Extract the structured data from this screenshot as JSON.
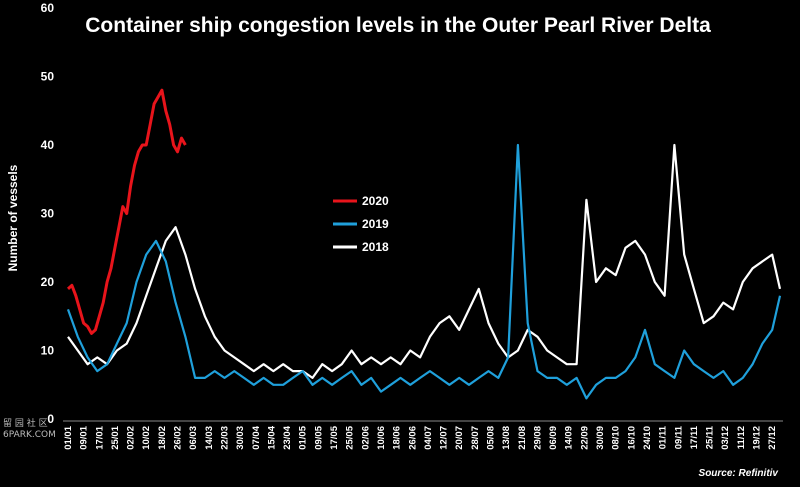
{
  "chart_data": {
    "type": "line",
    "title": "Container ship congestion levels in the Outer Pearl River Delta",
    "ylabel": "Number of vessels",
    "xlabel": "",
    "ylim": [
      0,
      60
    ],
    "yticks": [
      0,
      10,
      20,
      30,
      40,
      50,
      60
    ],
    "x_tick_labels": [
      "01/01",
      "09/01",
      "17/01",
      "25/01",
      "02/02",
      "10/02",
      "18/02",
      "26/02",
      "06/03",
      "14/03",
      "22/03",
      "30/03",
      "07/04",
      "15/04",
      "23/04",
      "01/05",
      "09/05",
      "17/05",
      "25/05",
      "02/06",
      "10/06",
      "18/06",
      "26/06",
      "04/07",
      "12/07",
      "20/07",
      "28/07",
      "05/08",
      "13/08",
      "21/08",
      "29/08",
      "06/09",
      "14/09",
      "22/09",
      "30/09",
      "08/10",
      "16/10",
      "24/10",
      "01/11",
      "09/11",
      "17/11",
      "25/11",
      "03/12",
      "11/12",
      "19/12",
      "27/12"
    ],
    "legend_position": "center-left",
    "grid": false,
    "series": [
      {
        "name": "2020",
        "color": "#e8141b",
        "x_day": [
          1,
          3,
          5,
          7,
          9,
          11,
          13,
          15,
          17,
          19,
          21,
          23,
          25,
          27,
          29,
          31,
          33,
          35,
          37,
          39,
          41,
          43,
          45,
          47,
          49,
          51,
          53,
          55,
          57,
          59,
          61
        ],
        "values": [
          19,
          19.5,
          18,
          16,
          14,
          13.5,
          12.5,
          13,
          15,
          17,
          20,
          22,
          25,
          28,
          31,
          30,
          34,
          37,
          39,
          40,
          40,
          43,
          46,
          47,
          48,
          45,
          43,
          40,
          39,
          41,
          40
        ]
      },
      {
        "name": "2019",
        "color": "#1fa0db",
        "x_day": [
          1,
          6,
          11,
          16,
          21,
          26,
          31,
          36,
          41,
          46,
          51,
          56,
          61,
          66,
          71,
          76,
          81,
          86,
          91,
          96,
          101,
          106,
          111,
          116,
          121,
          126,
          131,
          136,
          141,
          146,
          151,
          156,
          161,
          166,
          171,
          176,
          181,
          186,
          191,
          196,
          201,
          206,
          211,
          216,
          221,
          226,
          231,
          236,
          241,
          246,
          251,
          256,
          261,
          266,
          271,
          276,
          281,
          286,
          291,
          296,
          301,
          306,
          311,
          316,
          321,
          326,
          331,
          336,
          341,
          346,
          351,
          356,
          361,
          365
        ],
        "values": [
          16,
          12,
          9,
          7,
          8,
          11,
          14,
          20,
          24,
          26,
          23,
          17,
          12,
          6,
          6,
          7,
          6,
          7,
          6,
          5,
          6,
          5,
          5,
          6,
          7,
          5,
          6,
          5,
          6,
          7,
          5,
          6,
          4,
          5,
          6,
          5,
          6,
          7,
          6,
          5,
          6,
          5,
          6,
          7,
          6,
          9,
          40,
          14,
          7,
          6,
          6,
          5,
          6,
          3,
          5,
          6,
          6,
          7,
          9,
          13,
          8,
          7,
          6,
          10,
          8,
          7,
          6,
          7,
          5,
          6,
          8,
          11,
          13,
          18
        ]
      },
      {
        "name": "2018",
        "color": "#ffffff",
        "x_day": [
          1,
          6,
          11,
          16,
          21,
          26,
          31,
          36,
          41,
          46,
          51,
          56,
          61,
          66,
          71,
          76,
          81,
          86,
          91,
          96,
          101,
          106,
          111,
          116,
          121,
          126,
          131,
          136,
          141,
          146,
          151,
          156,
          161,
          166,
          171,
          176,
          181,
          186,
          191,
          196,
          201,
          206,
          211,
          216,
          221,
          226,
          231,
          236,
          241,
          246,
          251,
          256,
          261,
          266,
          271,
          276,
          281,
          286,
          291,
          296,
          301,
          306,
          311,
          316,
          321,
          326,
          331,
          336,
          341,
          346,
          351,
          356,
          361,
          365
        ],
        "values": [
          12,
          10,
          8,
          9,
          8,
          10,
          11,
          14,
          18,
          22,
          26,
          28,
          24,
          19,
          15,
          12,
          10,
          9,
          8,
          7,
          8,
          7,
          8,
          7,
          7,
          6,
          8,
          7,
          8,
          10,
          8,
          9,
          8,
          9,
          8,
          10,
          9,
          12,
          14,
          15,
          13,
          16,
          19,
          14,
          11,
          9,
          10,
          13,
          12,
          10,
          9,
          8,
          8,
          32,
          20,
          22,
          21,
          25,
          26,
          24,
          20,
          18,
          40,
          24,
          19,
          14,
          15,
          17,
          16,
          20,
          22,
          23,
          24,
          19
        ]
      }
    ],
    "annotations": [
      "Source: Refinitiv"
    ]
  },
  "watermark": {
    "line1": "留 园 社 区",
    "line2": "6PARK.COM"
  }
}
